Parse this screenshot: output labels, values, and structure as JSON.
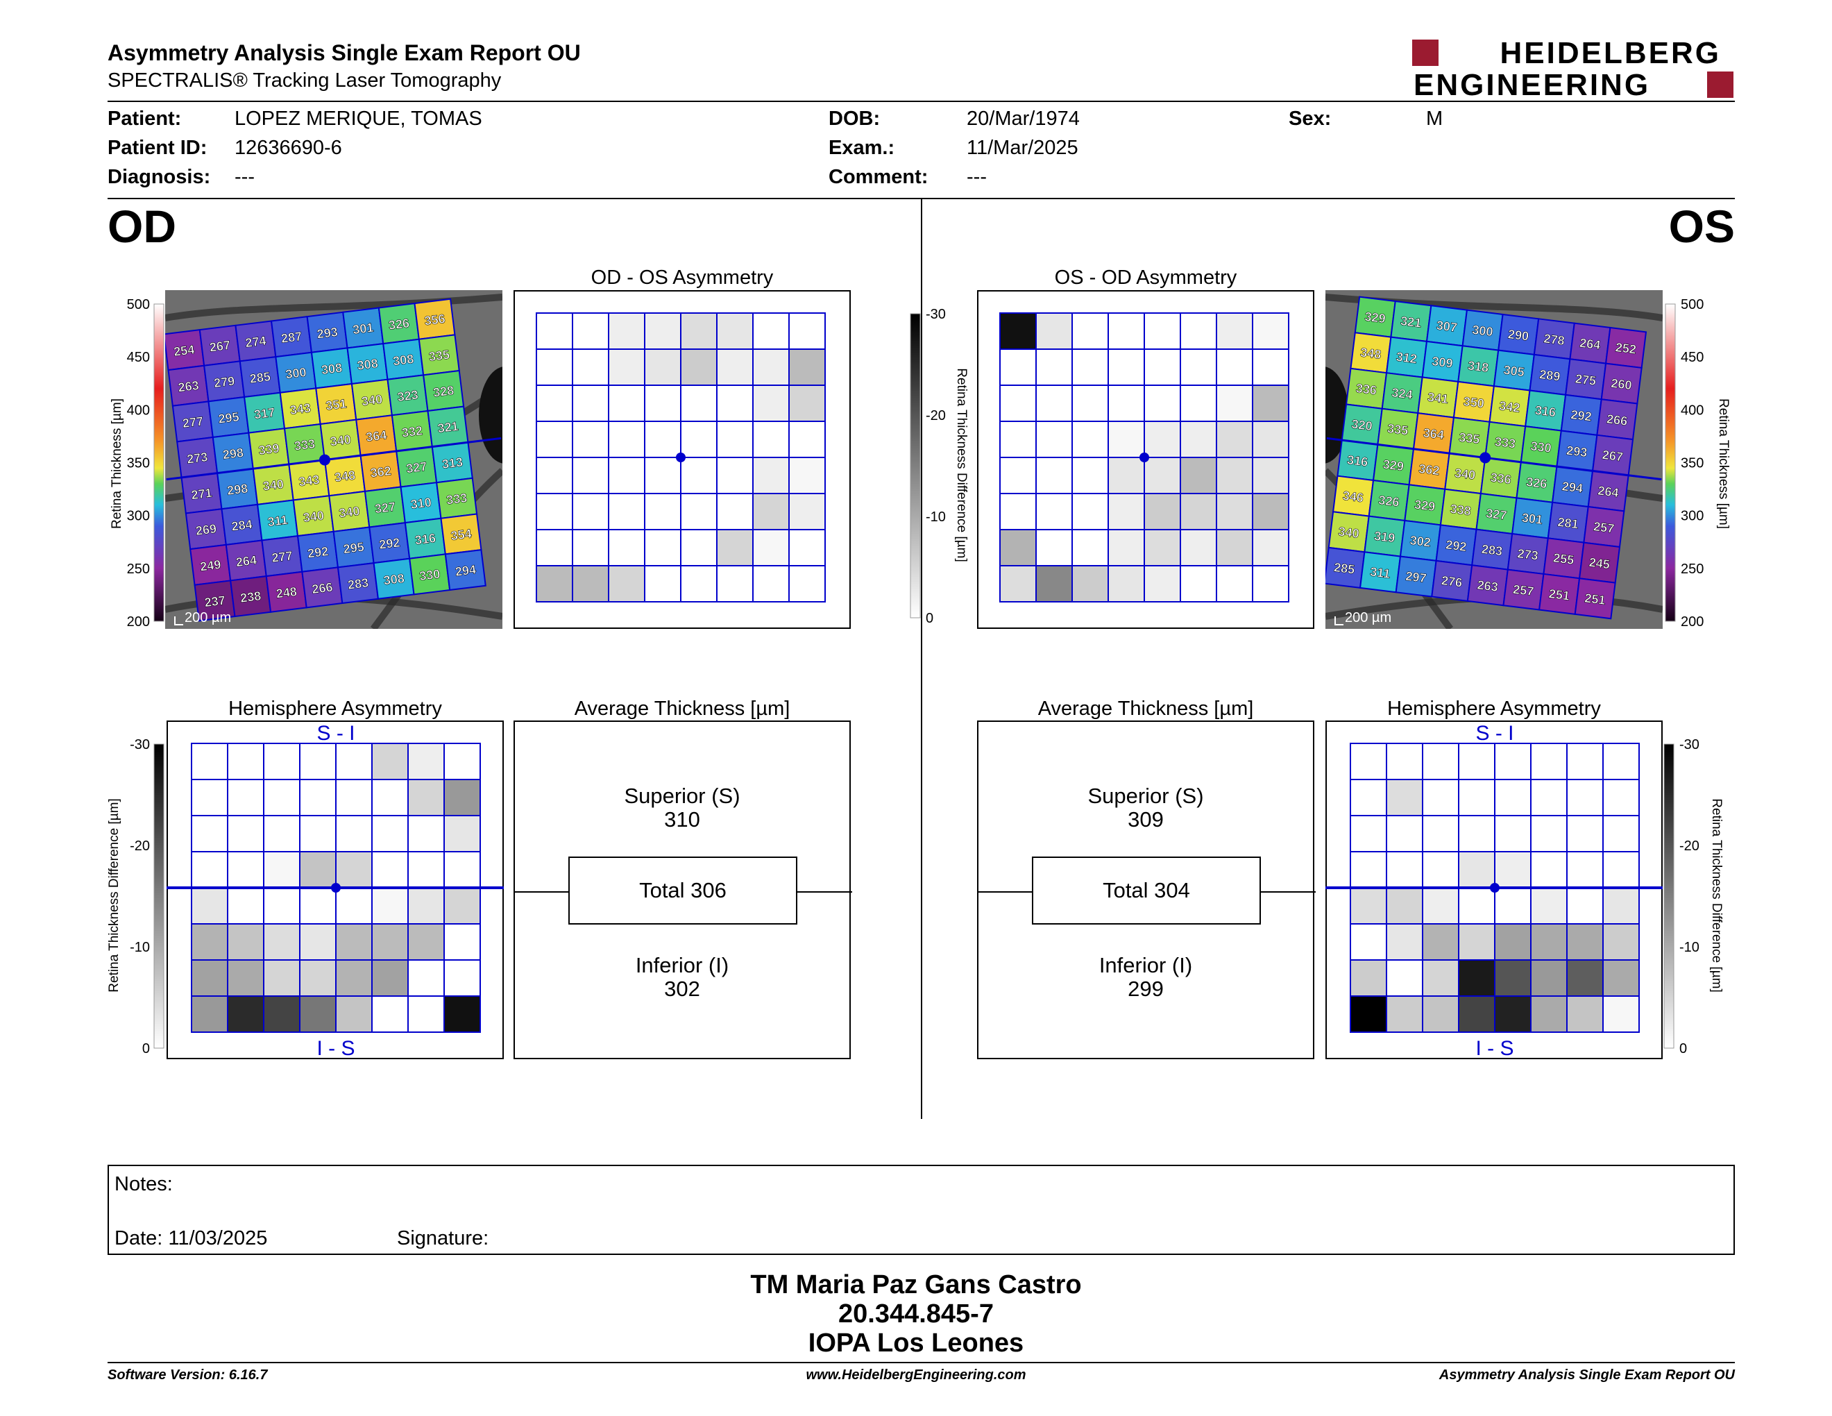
{
  "report": {
    "title": "Asymmetry Analysis Single Exam Report OU",
    "subtitle": "SPECTRALIS® Tracking Laser Tomography",
    "logo_line1": "HEIDELBERG",
    "logo_line2": "ENGINEERING"
  },
  "patient": {
    "patient_label": "Patient:",
    "patient_value": "LOPEZ MERIQUE, TOMAS",
    "id_label": "Patient ID:",
    "id_value": "12636690-6",
    "diagnosis_label": "Diagnosis:",
    "diagnosis_value": "---",
    "dob_label": "DOB:",
    "dob_value": "20/Mar/1974",
    "exam_label": "Exam.:",
    "exam_value": "11/Mar/2025",
    "comment_label": "Comment:",
    "comment_value": "---",
    "sex_label": "Sex:",
    "sex_value": "M"
  },
  "od": {
    "eye_label": "OD",
    "asym_title": "OD - OS Asymmetry",
    "hemi_title": "Hemisphere Asymmetry",
    "avg_title": "Average Thickness [µm]",
    "superior_label": "Superior (S)",
    "superior_value": "310",
    "total_text": "Total 306",
    "inferior_label": "Inferior (I)",
    "inferior_value": "302",
    "scale_bar": "200 µm",
    "hemi_top": "S - I",
    "hemi_bottom": "I - S",
    "thickness_grid": [
      [
        "254",
        "267",
        "274",
        "287",
        "293",
        "301",
        "326",
        "356"
      ],
      [
        "263",
        "279",
        "285",
        "300",
        "308",
        "308",
        "308",
        "335"
      ],
      [
        "277",
        "295",
        "317",
        "343",
        "351",
        "340",
        "323",
        "328"
      ],
      [
        "273",
        "298",
        "339",
        "333",
        "340",
        "364",
        "332",
        "321"
      ],
      [
        "271",
        "298",
        "340",
        "343",
        "348",
        "362",
        "327",
        "313"
      ],
      [
        "269",
        "284",
        "311",
        "340",
        "340",
        "327",
        "310",
        "333"
      ],
      [
        "249",
        "264",
        "277",
        "292",
        "295",
        "292",
        "316",
        "354"
      ],
      [
        "237",
        "238",
        "248",
        "266",
        "283",
        "308",
        "330",
        "294"
      ]
    ],
    "asym_gray": [
      [
        0,
        0,
        2,
        2,
        4,
        3,
        0,
        0
      ],
      [
        0,
        0,
        2,
        3,
        6,
        2,
        2,
        8
      ],
      [
        0,
        0,
        0,
        0,
        0,
        0,
        2,
        5
      ],
      [
        0,
        0,
        0,
        0,
        0,
        0,
        0,
        0
      ],
      [
        0,
        0,
        0,
        0,
        0,
        0,
        2,
        1
      ],
      [
        0,
        0,
        0,
        0,
        0,
        0,
        5,
        2
      ],
      [
        0,
        0,
        0,
        0,
        0,
        5,
        1,
        0
      ],
      [
        8,
        8,
        5,
        0,
        0,
        0,
        0,
        0
      ]
    ],
    "hemi_gray": [
      [
        0,
        0,
        0,
        0,
        0,
        5,
        2,
        0
      ],
      [
        0,
        0,
        0,
        0,
        0,
        0,
        5,
        12
      ],
      [
        0,
        0,
        0,
        0,
        0,
        0,
        0,
        3
      ],
      [
        0,
        0,
        1,
        7,
        5,
        0,
        0,
        0
      ],
      [
        3,
        0,
        0,
        0,
        0,
        1,
        3,
        5
      ],
      [
        9,
        7,
        4,
        3,
        8,
        8,
        8,
        0
      ],
      [
        11,
        10,
        5,
        5,
        9,
        11,
        0,
        0
      ],
      [
        12,
        25,
        22,
        16,
        7,
        0,
        0,
        28
      ]
    ]
  },
  "os": {
    "eye_label": "OS",
    "asym_title": "OS - OD Asymmetry",
    "hemi_title": "Hemisphere Asymmetry",
    "avg_title": "Average Thickness [µm]",
    "superior_label": "Superior (S)",
    "superior_value": "309",
    "total_text": "Total 304",
    "inferior_label": "Inferior (I)",
    "inferior_value": "299",
    "scale_bar": "200 µm",
    "hemi_top": "S - I",
    "hemi_bottom": "I - S",
    "thickness_grid": [
      [
        "329",
        "321",
        "307",
        "300",
        "290",
        "278",
        "264",
        "252"
      ],
      [
        "348",
        "312",
        "309",
        "318",
        "305",
        "289",
        "275",
        "260"
      ],
      [
        "336",
        "324",
        "341",
        "350",
        "342",
        "316",
        "292",
        "266"
      ],
      [
        "320",
        "335",
        "364",
        "335",
        "333",
        "330",
        "293",
        "267"
      ],
      [
        "316",
        "329",
        "362",
        "340",
        "336",
        "326",
        "294",
        "264"
      ],
      [
        "346",
        "326",
        "329",
        "338",
        "327",
        "301",
        "281",
        "257"
      ],
      [
        "340",
        "319",
        "302",
        "292",
        "283",
        "273",
        "255",
        "245"
      ],
      [
        "285",
        "311",
        "297",
        "276",
        "263",
        "257",
        "251",
        "251"
      ]
    ],
    "asym_gray": [
      [
        28,
        3,
        0,
        0,
        0,
        0,
        2,
        1
      ],
      [
        0,
        0,
        0,
        0,
        0,
        0,
        0,
        0
      ],
      [
        0,
        0,
        0,
        0,
        0,
        0,
        1,
        8
      ],
      [
        0,
        0,
        0,
        1,
        2,
        2,
        4,
        3
      ],
      [
        0,
        0,
        0,
        3,
        3,
        8,
        4,
        3
      ],
      [
        0,
        0,
        0,
        2,
        6,
        5,
        4,
        8
      ],
      [
        9,
        0,
        0,
        2,
        4,
        2,
        5,
        2
      ],
      [
        4,
        14,
        6,
        3,
        2,
        0,
        0,
        0
      ]
    ],
    "hemi_gray": [
      [
        0,
        0,
        0,
        0,
        0,
        0,
        0,
        0
      ],
      [
        0,
        4,
        0,
        0,
        0,
        0,
        0,
        0
      ],
      [
        0,
        0,
        0,
        0,
        0,
        0,
        0,
        0
      ],
      [
        0,
        0,
        0,
        3,
        2,
        0,
        0,
        0
      ],
      [
        4,
        5,
        2,
        0,
        0,
        2,
        0,
        3
      ],
      [
        0,
        3,
        9,
        5,
        11,
        10,
        10,
        6
      ],
      [
        6,
        0,
        5,
        27,
        20,
        12,
        19,
        10
      ],
      [
        31,
        6,
        7,
        22,
        26,
        10,
        7,
        1
      ]
    ]
  },
  "scales": {
    "thickness_ticks": [
      "500",
      "450",
      "400",
      "350",
      "300",
      "250",
      "200"
    ],
    "thickness_axis_label": "Retina  Thickness [µm]",
    "diff_ticks": [
      "-30",
      "-20",
      "-10",
      "0"
    ],
    "diff_axis_label": "Retina Thickness Difference [µm]"
  },
  "notes": {
    "notes_label": "Notes:",
    "date_label": "Date: 11/03/2025",
    "signature_label": "Signature:"
  },
  "footer": {
    "name": "TM Maria Paz Gans Castro",
    "id": "20.344.845-7",
    "institution": "IOPA Los Leones",
    "software": "Software Version: 6.16.7",
    "website": "www.HeidelbergEngineering.com",
    "report_name": "Asymmetry Analysis Single Exam Report OU"
  }
}
